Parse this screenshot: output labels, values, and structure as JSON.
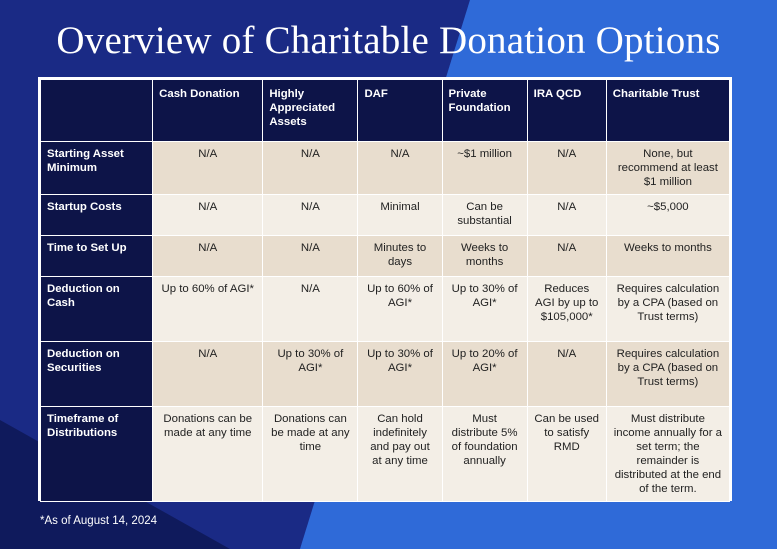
{
  "title": "Overview of Charitable Donation Options",
  "footnote": "*As of August 14, 2024",
  "table": {
    "headers": [
      "",
      "Cash Donation",
      "Highly Appreciated Assets",
      "DAF",
      "Private Foundation",
      "IRA QCD",
      "Charitable Trust"
    ],
    "rows": [
      {
        "label": "Starting Asset Minimum",
        "cells": [
          "N/A",
          "N/A",
          "N/A",
          "~$1 million",
          "N/A",
          "None, but recommend at least $1 million"
        ]
      },
      {
        "label": "Startup Costs",
        "cells": [
          "N/A",
          "N/A",
          "Minimal",
          "Can be substantial",
          "N/A",
          "~$5,000"
        ]
      },
      {
        "label": "Time to Set Up",
        "cells": [
          "N/A",
          "N/A",
          "Minutes to days",
          "Weeks to months",
          "N/A",
          "Weeks to months"
        ]
      },
      {
        "label": "Deduction on Cash",
        "cells": [
          "Up to 60% of AGI*",
          "N/A",
          "Up to 60% of AGI*",
          "Up to 30% of AGI*",
          "Reduces AGI by up to $105,000*",
          "Requires calculation by a CPA (based on Trust terms)"
        ]
      },
      {
        "label": "Deduction on Securities",
        "cells": [
          "N/A",
          "Up to 30% of AGI*",
          "Up to 30% of AGI*",
          "Up to 20% of AGI*",
          "N/A",
          "Requires calculation by a CPA (based on Trust terms)"
        ]
      },
      {
        "label": "Timeframe of Distributions",
        "cells": [
          "Donations can be made at any time",
          "Donations can be made at any time",
          "Can hold indefinitely and pay out at any time",
          "Must distribute 5% of foundation annually",
          "Can be used to satisfy RMD",
          "Must distribute income annually for a set term; the remainder is distributed at the end of the term."
        ]
      }
    ]
  },
  "colors": {
    "background": "#1f3fa6",
    "header_navy": "#0d1448",
    "row_odd": "#e8ddce",
    "row_even": "#f3eee6"
  }
}
